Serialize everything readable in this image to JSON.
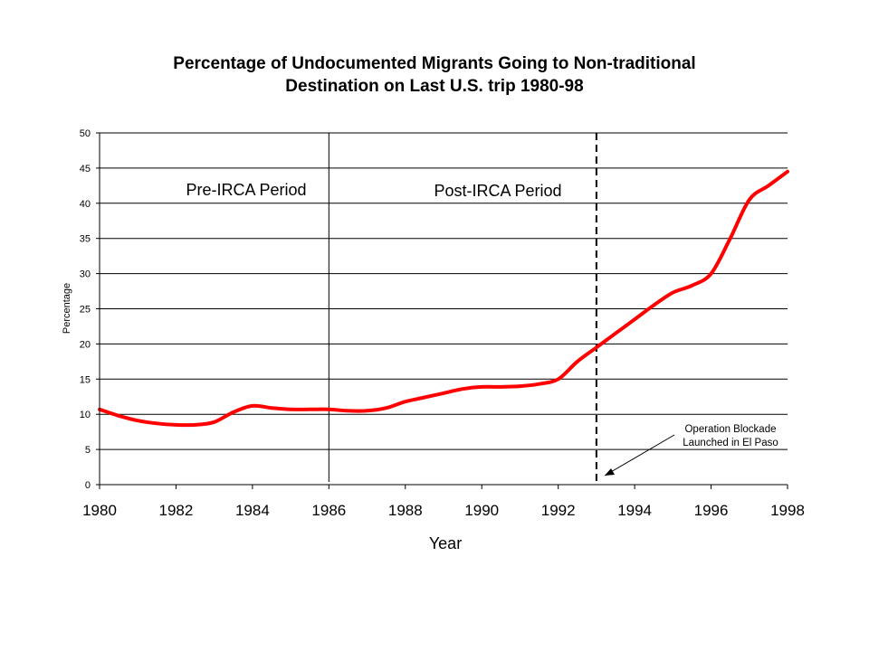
{
  "chart_data": {
    "type": "line",
    "title_lines": [
      "Percentage of Undocumented Migrants Going to Non-traditional",
      "Destination on Last U.S. trip 1980-98"
    ],
    "xlabel": "Year",
    "ylabel": "Percentage",
    "xlim": [
      1980,
      1998
    ],
    "ylim": [
      0,
      50
    ],
    "x_ticks": [
      1980,
      1982,
      1984,
      1986,
      1988,
      1990,
      1992,
      1994,
      1996,
      1998
    ],
    "y_ticks": [
      0,
      5,
      10,
      15,
      20,
      25,
      30,
      35,
      40,
      45,
      50
    ],
    "grid": "horizontal",
    "legend": "none",
    "series": [
      {
        "color": "#ff0000",
        "x": [
          1980,
          1980.5,
          1981,
          1981.5,
          1982,
          1982.5,
          1983,
          1983.5,
          1984,
          1984.5,
          1985,
          1985.5,
          1986,
          1986.5,
          1987,
          1987.5,
          1988,
          1988.5,
          1989,
          1989.5,
          1990,
          1990.5,
          1991,
          1991.5,
          1992,
          1992.5,
          1993,
          1993.5,
          1994,
          1994.5,
          1995,
          1995.5,
          1996,
          1996.5,
          1997,
          1997.5,
          1998
        ],
        "y": [
          10.7,
          9.8,
          9.1,
          8.7,
          8.5,
          8.5,
          8.9,
          10.3,
          11.2,
          10.9,
          10.7,
          10.7,
          10.7,
          10.5,
          10.5,
          10.9,
          11.8,
          12.4,
          13.0,
          13.6,
          13.9,
          13.9,
          14.0,
          14.3,
          15.0,
          17.5,
          19.5,
          21.5,
          23.5,
          25.5,
          27.3,
          28.3,
          30.0,
          35.0,
          40.5,
          42.5,
          44.5
        ]
      }
    ],
    "annotations": {
      "pre_period": "Pre-IRCA Period",
      "post_period": "Post-IRCA Period",
      "event_line1": "Operation Blockade",
      "event_line2": "Launched in El Paso"
    },
    "period_divider_x": 1986,
    "event_x": 1993
  }
}
